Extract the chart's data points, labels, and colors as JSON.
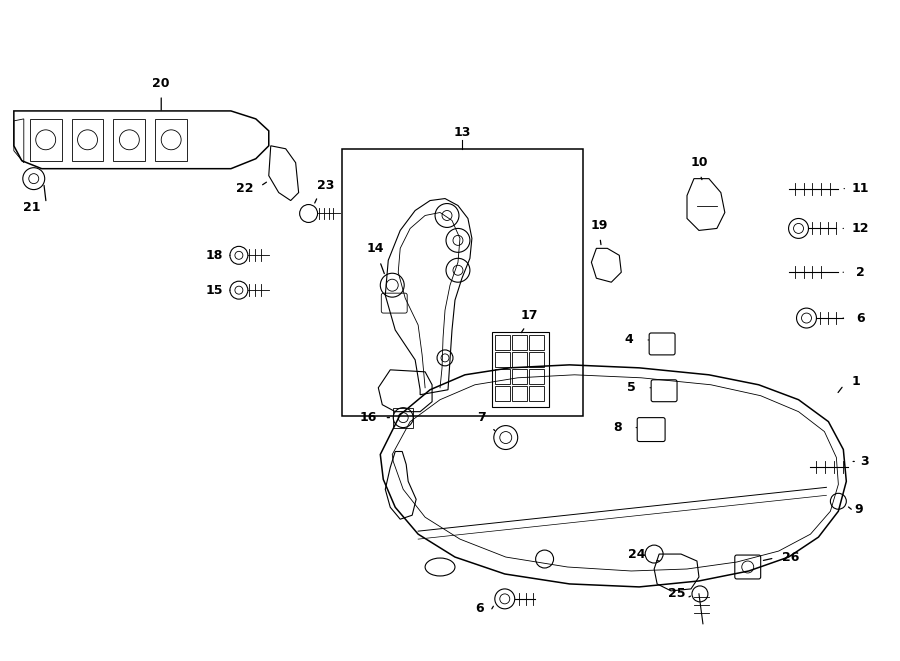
{
  "bg_color": "#ffffff",
  "fig_w": 9.0,
  "fig_h": 6.61,
  "dpi": 100,
  "lw_main": 1.1,
  "lw_med": 0.8,
  "lw_thin": 0.6,
  "label_fs": 9,
  "label_fw": "bold"
}
